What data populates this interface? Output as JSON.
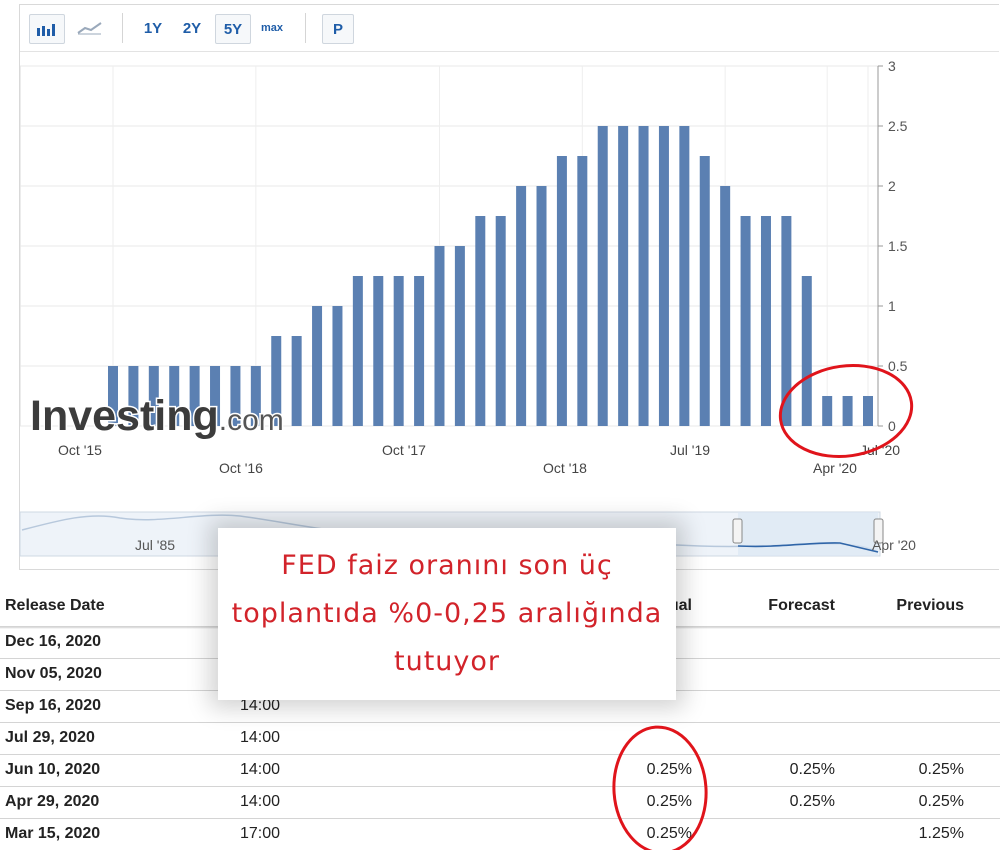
{
  "toolbar": {
    "bar_icon": "bar-chart-icon",
    "line_icon": "line-chart-icon",
    "ranges": [
      "1Y",
      "2Y",
      "5Y",
      "max"
    ],
    "selected_range": "5Y",
    "p_label": "P"
  },
  "watermark": "Investing.com",
  "chart_data": {
    "type": "bar",
    "values": [
      0.5,
      0.5,
      0.5,
      0.5,
      0.5,
      0.5,
      0.5,
      0.5,
      0.75,
      0.75,
      1,
      1,
      1.25,
      1.25,
      1.25,
      1.25,
      1.5,
      1.5,
      1.75,
      1.75,
      2,
      2,
      2.25,
      2.25,
      2.5,
      2.5,
      2.5,
      2.5,
      2.5,
      2.25,
      2,
      1.75,
      1.75,
      1.75,
      1.25,
      0.25,
      0.25,
      0.25
    ],
    "ylim": [
      0,
      3
    ],
    "yticks": [
      "0",
      "0.5",
      "1",
      "1.5",
      "2",
      "2.5",
      "3"
    ],
    "xlabels_upper": [
      "Oct '15",
      "Oct '17",
      "Jul '19",
      "Jul '20"
    ],
    "xlabels_lower": [
      "Oct '16",
      "Oct '18",
      "Apr '20"
    ],
    "bar_color": "#5b80b2",
    "grid": true
  },
  "navigator": {
    "label_left": "Jul '85",
    "label_right": "Apr '20"
  },
  "callout": {
    "lines": [
      "FED faiz oranını son üç",
      "toplantıda %0-0,25 aralığında",
      "tutuyor"
    ],
    "color": "#d2232a"
  },
  "table": {
    "headers": {
      "release_date": "Release Date",
      "actual": "Actual",
      "forecast": "Forecast",
      "previous": "Previous"
    },
    "rows": [
      {
        "date": "Dec 16, 2020",
        "time": "",
        "actual": "",
        "forecast": "",
        "previous": ""
      },
      {
        "date": "Nov 05, 2020",
        "time": "",
        "actual": "",
        "forecast": "",
        "previous": ""
      },
      {
        "date": "Sep 16, 2020",
        "time": "14:00",
        "actual": "",
        "forecast": "",
        "previous": ""
      },
      {
        "date": "Jul 29, 2020",
        "time": "14:00",
        "actual": "",
        "forecast": "",
        "previous": ""
      },
      {
        "date": "Jun 10, 2020",
        "time": "14:00",
        "actual": "0.25%",
        "forecast": "0.25%",
        "previous": "0.25%"
      },
      {
        "date": "Apr 29, 2020",
        "time": "14:00",
        "actual": "0.25%",
        "forecast": "0.25%",
        "previous": "0.25%"
      },
      {
        "date": "Mar 15, 2020",
        "time": "17:00",
        "actual": "0.25%",
        "forecast": "",
        "previous": "1.25%"
      }
    ]
  },
  "annotation_color": "#e0141b"
}
